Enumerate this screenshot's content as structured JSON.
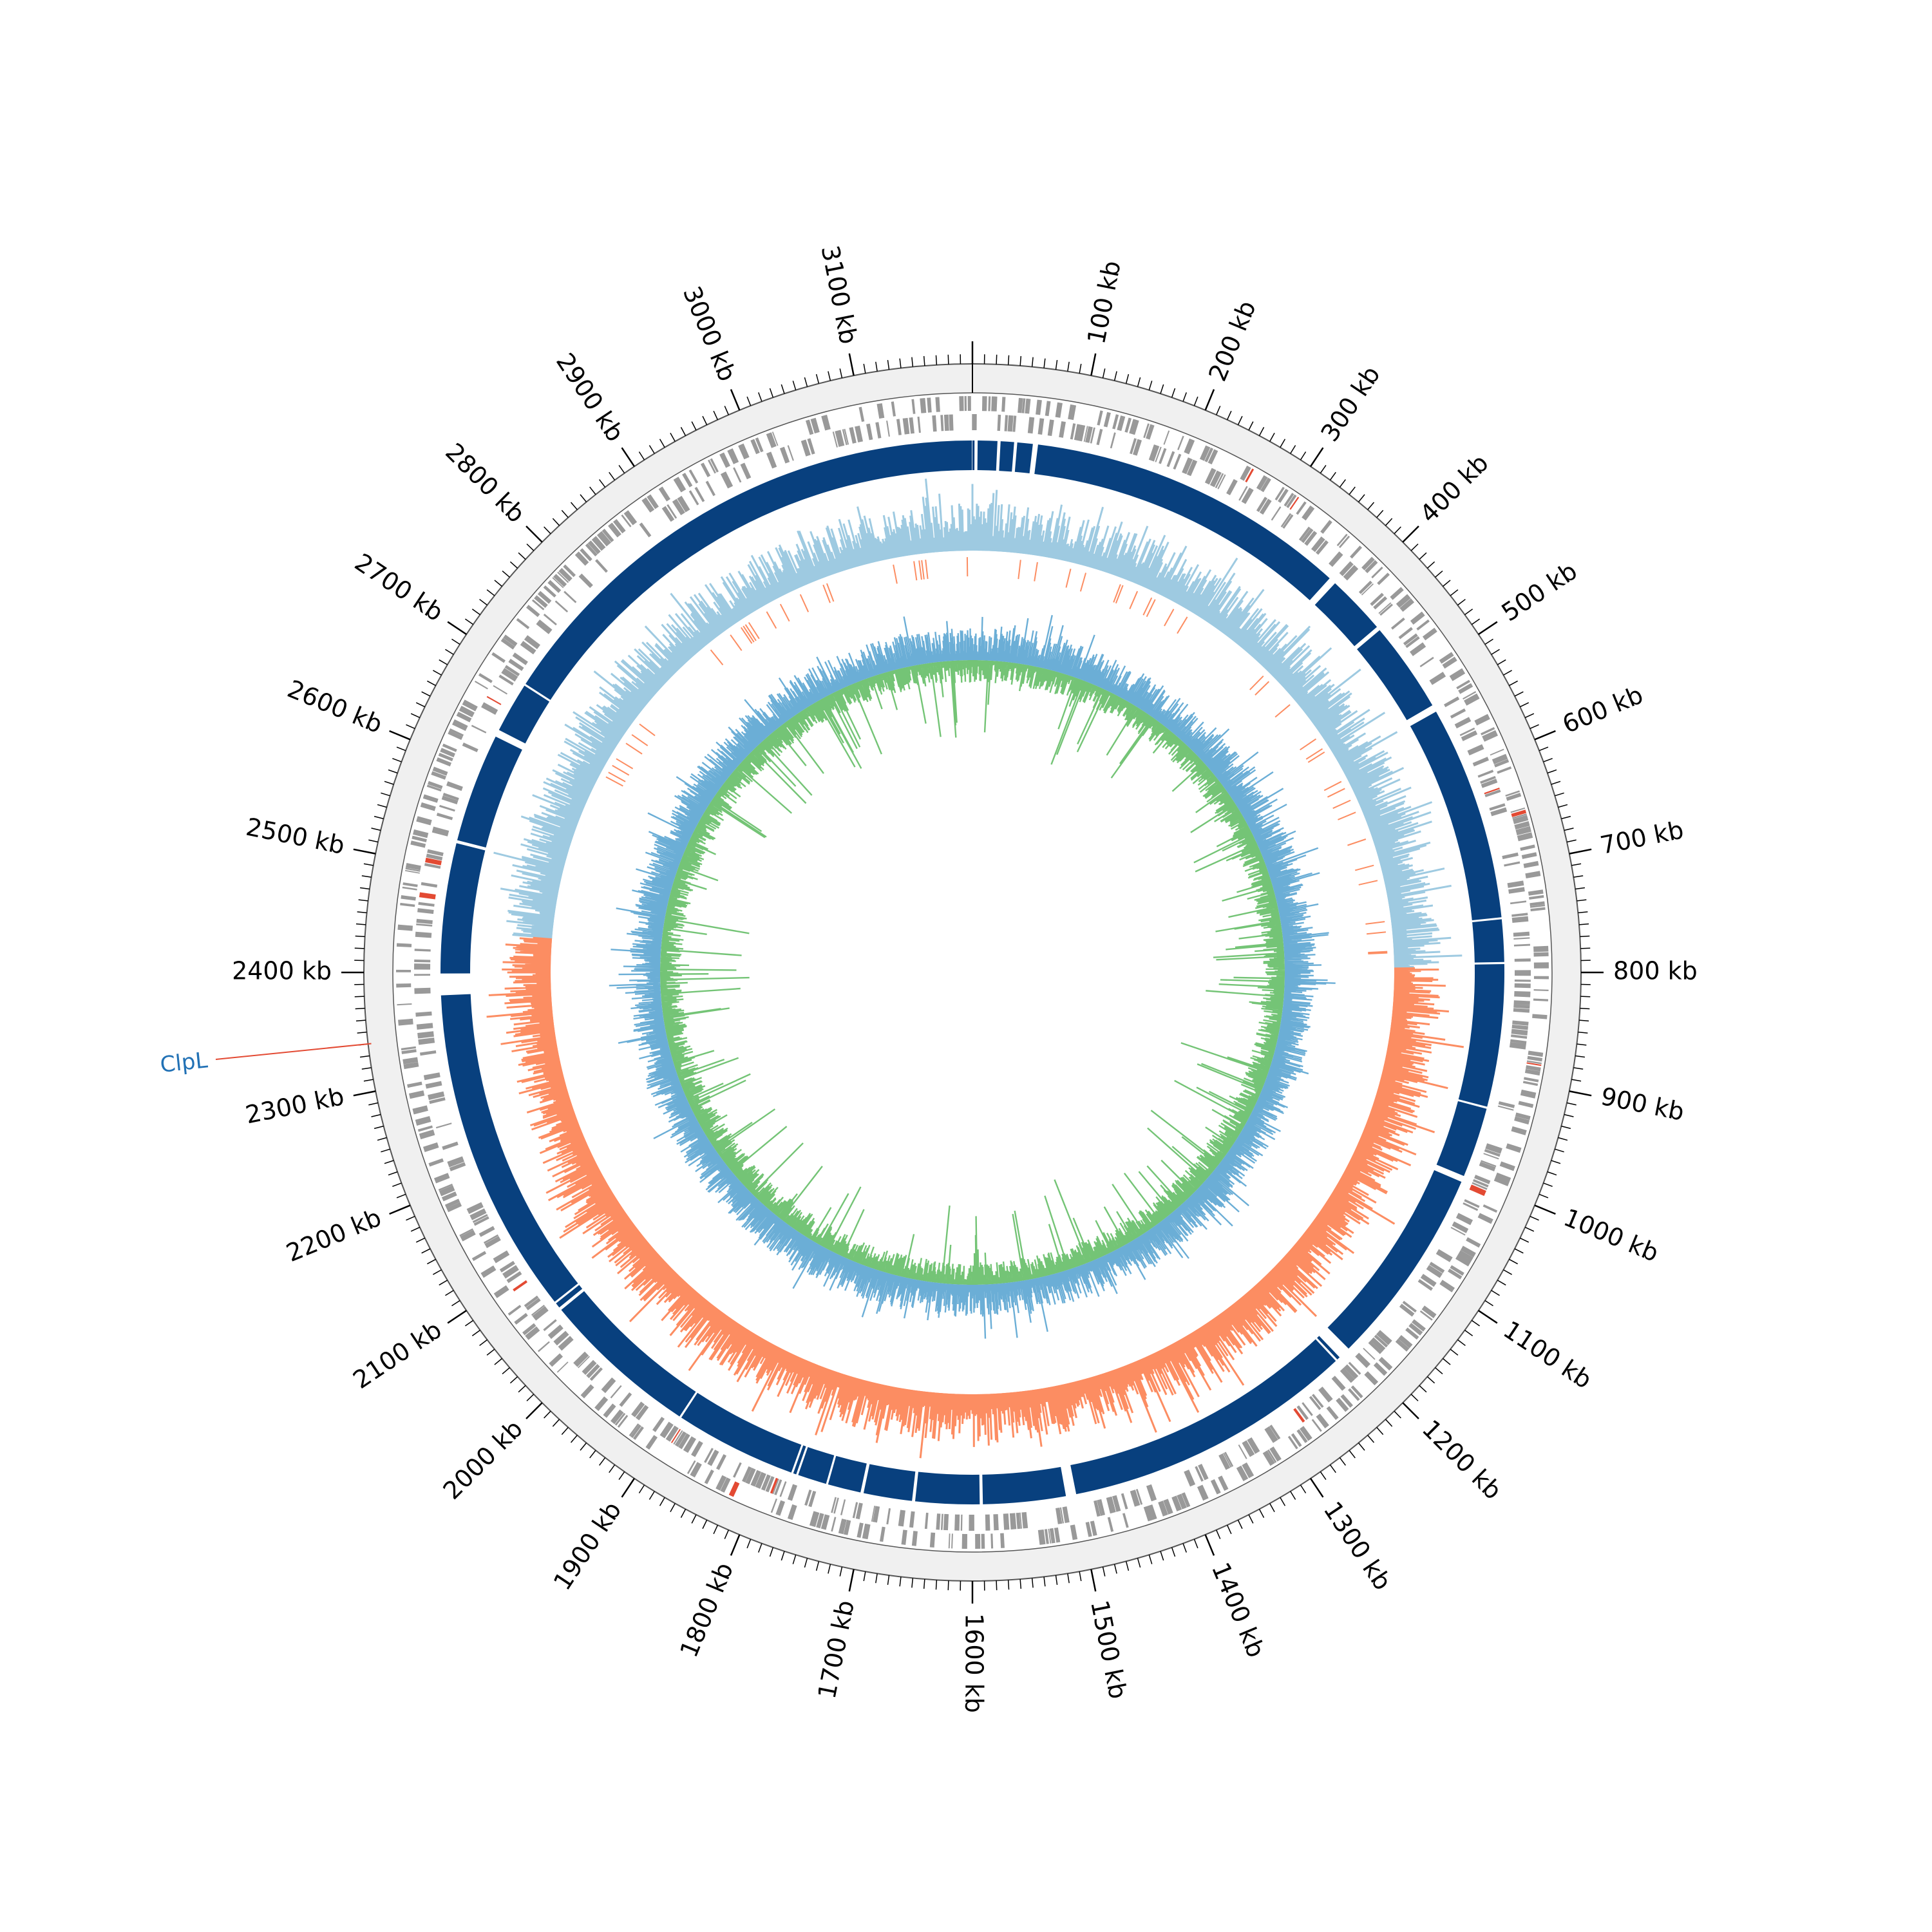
{
  "genome": {
    "length_kb": 3200,
    "tick_labels": [
      {
        "kb": 100,
        "text": "100 kb"
      },
      {
        "kb": 200,
        "text": "200 kb"
      },
      {
        "kb": 300,
        "text": "300 kb"
      },
      {
        "kb": 400,
        "text": "400 kb"
      },
      {
        "kb": 500,
        "text": "500 kb"
      },
      {
        "kb": 600,
        "text": "600 kb"
      },
      {
        "kb": 700,
        "text": "700 kb"
      },
      {
        "kb": 800,
        "text": "800 kb"
      },
      {
        "kb": 900,
        "text": "900 kb"
      },
      {
        "kb": 1000,
        "text": "1000 kb"
      },
      {
        "kb": 1100,
        "text": "1100 kb"
      },
      {
        "kb": 1200,
        "text": "1200 kb"
      },
      {
        "kb": 1300,
        "text": "1300 kb"
      },
      {
        "kb": 1400,
        "text": "1400 kb"
      },
      {
        "kb": 1500,
        "text": "1500 kb"
      },
      {
        "kb": 1600,
        "text": "1600 kb"
      },
      {
        "kb": 1700,
        "text": "1700 kb"
      },
      {
        "kb": 1800,
        "text": "1800 kb"
      },
      {
        "kb": 1900,
        "text": "1900 kb"
      },
      {
        "kb": 2000,
        "text": "2000 kb"
      },
      {
        "kb": 2100,
        "text": "2100 kb"
      },
      {
        "kb": 2200,
        "text": "2200 kb"
      },
      {
        "kb": 2300,
        "text": "2300 kb"
      },
      {
        "kb": 2400,
        "text": "2400 kb"
      },
      {
        "kb": 2500,
        "text": "2500 kb"
      },
      {
        "kb": 2600,
        "text": "2600 kb"
      },
      {
        "kb": 2700,
        "text": "2700 kb"
      },
      {
        "kb": 2800,
        "text": "2800 kb"
      },
      {
        "kb": 2900,
        "text": "2900 kb"
      },
      {
        "kb": 3000,
        "text": "3000 kb"
      },
      {
        "kb": 3100,
        "text": "3100 kb"
      }
    ]
  },
  "annotation": {
    "gene_name": "ClpL",
    "position_kb": 2340,
    "label_color": "#2171b5",
    "line_color": "#e34a33"
  },
  "tracks": {
    "outer_ring": {
      "color": "#f0f0f0",
      "edge": "#555555"
    },
    "genes": {
      "color": "#999999",
      "highlight": "#e34a33"
    },
    "contigs": {
      "color": "#08407e",
      "gaps_kb": [
        2,
        24,
        40,
        58,
        375,
        440,
        532,
        747,
        790,
        930,
        1000,
        1200,
        1215,
        1500,
        1590,
        1655,
        1705,
        1740,
        1770,
        1775,
        1895,
        2050,
        2058,
        2378,
        2397,
        2525,
        2634,
        2690
      ],
      "gap_widths_kb": [
        3,
        3,
        3,
        5,
        7,
        4,
        7,
        2,
        2,
        2,
        6,
        12,
        2,
        10,
        3,
        3,
        3,
        2,
        2,
        2,
        2,
        3,
        2,
        22,
        2,
        3,
        7,
        2
      ]
    },
    "gc_skew": {
      "positive_color": "#9ecae1",
      "negative_color": "#fc8d62",
      "switch_kb": [
        0,
        795,
        2440
      ],
      "switch_signs": [
        1,
        -1,
        1
      ]
    },
    "gc_content": {
      "above_color": "#6baed6",
      "below_color": "#74c476"
    }
  }
}
